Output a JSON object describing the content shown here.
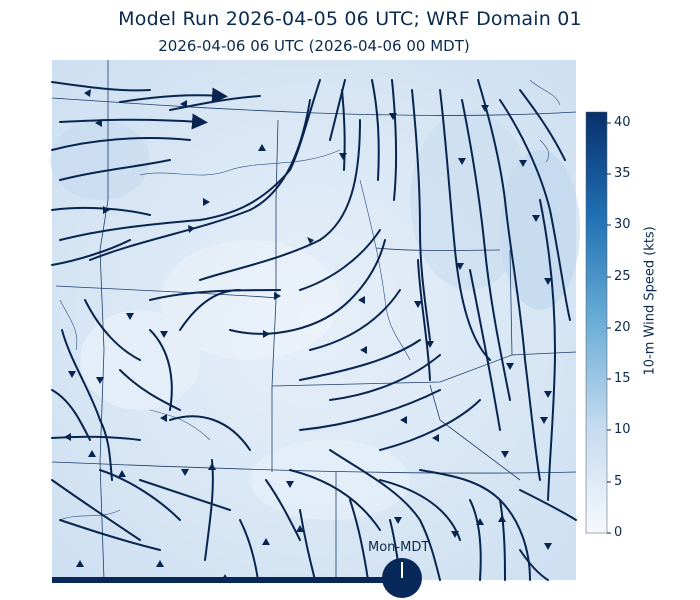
{
  "header": {
    "title": "Model Run 2026-04-05 06 UTC; WRF Domain 01",
    "subtitle": "2026-04-06 06 UTC  (2026-04-06 00 MDT)"
  },
  "map": {
    "fill_color": "#dbe8f5",
    "streamline_color": "#08254f",
    "border_color": "#1f3f6b"
  },
  "colorbar": {
    "label": "10-m Wind Speed (kts)",
    "min": 0,
    "max": 41,
    "ticks": [
      0,
      5,
      10,
      15,
      20,
      25,
      30,
      35,
      40
    ],
    "color_low": "#f4f9fe",
    "color_high": "#08306b"
  },
  "timeline": {
    "label": "Mon-MDT",
    "progress_fraction": 0.66,
    "bar_color": "#08285a"
  }
}
